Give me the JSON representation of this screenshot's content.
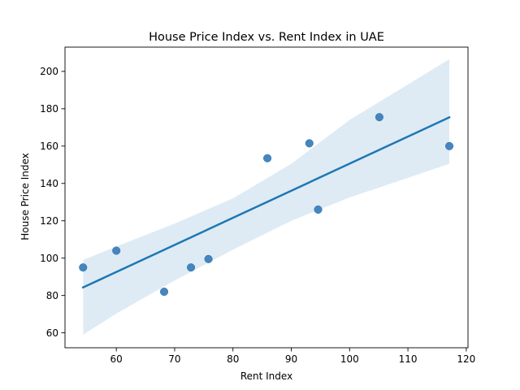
{
  "chart_data": {
    "type": "scatter",
    "title": "House Price Index vs. Rent Index in UAE",
    "xlabel": "Rent Index",
    "ylabel": "House Price Index",
    "xlim": [
      51.2,
      120.3
    ],
    "ylim": [
      52.0,
      213.0
    ],
    "x_ticks": [
      60,
      70,
      80,
      90,
      100,
      110,
      120
    ],
    "y_ticks": [
      60,
      80,
      100,
      120,
      140,
      160,
      180,
      200
    ],
    "grid": false,
    "points": [
      {
        "x": 54.3,
        "y": 95
      },
      {
        "x": 60.0,
        "y": 104
      },
      {
        "x": 68.2,
        "y": 82
      },
      {
        "x": 72.8,
        "y": 95
      },
      {
        "x": 75.8,
        "y": 99.5
      },
      {
        "x": 85.9,
        "y": 153.5
      },
      {
        "x": 93.1,
        "y": 161.5
      },
      {
        "x": 94.6,
        "y": 126
      },
      {
        "x": 105.1,
        "y": 175.5
      },
      {
        "x": 117.1,
        "y": 160
      }
    ],
    "regression": {
      "x_start": 54.3,
      "y_start": 84.3,
      "x_end": 117.1,
      "y_end": 175.4
    },
    "confidence_band": {
      "upper": [
        [
          54.3,
          99
        ],
        [
          60,
          106.2
        ],
        [
          70,
          118.5
        ],
        [
          80,
          132
        ],
        [
          90,
          150.5
        ],
        [
          100,
          174
        ],
        [
          110,
          193
        ],
        [
          117.1,
          206.5
        ]
      ],
      "lower": [
        [
          54.3,
          59
        ],
        [
          60,
          70.3
        ],
        [
          70,
          88
        ],
        [
          80,
          104.5
        ],
        [
          90,
          120
        ],
        [
          100,
          132.5
        ],
        [
          110,
          143
        ],
        [
          117.1,
          150.5
        ]
      ]
    },
    "colors": {
      "points": "#3b7fbb",
      "line": "#1f77b4",
      "band": "#1f77b4"
    }
  }
}
